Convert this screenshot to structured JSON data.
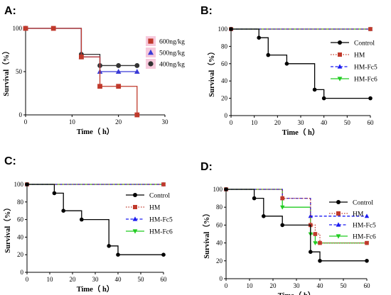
{
  "chart_data": [
    {
      "type": "line",
      "step": true,
      "panel_label": "A:",
      "xlabel": "Time（ h）",
      "ylabel": "Survival（%）",
      "xlim": [
        0,
        30
      ],
      "ylim": [
        0,
        100
      ],
      "x_ticks": [
        0,
        10,
        20,
        30
      ],
      "y_ticks": [
        0,
        50,
        100
      ],
      "legend_position": "top-right",
      "series": [
        {
          "name": "600ng/kg",
          "color": "#c0392b",
          "marker": "square",
          "line_style": "solid",
          "x": [
            0,
            6,
            12,
            16,
            20,
            24
          ],
          "values": [
            100,
            100,
            67,
            33,
            33,
            0
          ]
        },
        {
          "name": "500ng/kg",
          "color": "#3b3bd6",
          "marker": "triangle",
          "line_style": "solid",
          "x": [
            0,
            12,
            16,
            20,
            24
          ],
          "values": [
            100,
            67,
            50,
            50,
            50
          ]
        },
        {
          "name": "400ng/kg",
          "color": "#333333",
          "marker": "circle",
          "line_style": "solid",
          "x": [
            0,
            12,
            16,
            20,
            24
          ],
          "values": [
            100,
            70,
            57,
            57,
            57
          ]
        }
      ]
    },
    {
      "type": "line",
      "step": true,
      "panel_label": "B:",
      "xlabel": "Time（ h）",
      "ylabel": "Survival（%）",
      "xlim": [
        0,
        60
      ],
      "ylim": [
        0,
        100
      ],
      "x_ticks": [
        0,
        10,
        20,
        30,
        40,
        50,
        60
      ],
      "y_ticks": [
        0,
        20,
        40,
        60,
        80,
        100
      ],
      "legend_position": "right",
      "series": [
        {
          "name": "Control",
          "color": "#000000",
          "marker": "circle",
          "line_style": "solid",
          "x": [
            0,
            12,
            16,
            24,
            36,
            40,
            60
          ],
          "values": [
            100,
            90,
            70,
            60,
            30,
            20,
            20
          ]
        },
        {
          "name": "HM",
          "color": "#c0392b",
          "marker": "square",
          "line_style": "dotted",
          "x": [
            0,
            60
          ],
          "values": [
            100,
            100
          ]
        },
        {
          "name": "HM-Fc5",
          "color": "#1a1af0",
          "marker": "triangle",
          "line_style": "dashed",
          "x": [
            0,
            60
          ],
          "values": [
            100,
            100
          ]
        },
        {
          "name": "HM-Fc6",
          "color": "#22cc22",
          "marker": "triangle-down",
          "line_style": "solid",
          "x": [
            0,
            60
          ],
          "values": [
            100,
            100
          ]
        }
      ]
    },
    {
      "type": "line",
      "step": true,
      "panel_label": "C:",
      "xlabel": "Time（ h）",
      "ylabel": "Survival（%）",
      "xlim": [
        0,
        60
      ],
      "ylim": [
        0,
        100
      ],
      "x_ticks": [
        0,
        10,
        20,
        30,
        40,
        50,
        60
      ],
      "y_ticks": [
        0,
        20,
        40,
        60,
        80,
        100
      ],
      "legend_position": "right",
      "series": [
        {
          "name": "Control",
          "color": "#000000",
          "marker": "circle",
          "line_style": "solid",
          "x": [
            0,
            12,
            16,
            24,
            36,
            40,
            60
          ],
          "values": [
            100,
            90,
            70,
            60,
            30,
            20,
            20
          ]
        },
        {
          "name": "HM",
          "color": "#c0392b",
          "marker": "square",
          "line_style": "dotted",
          "x": [
            0,
            60
          ],
          "values": [
            100,
            100
          ]
        },
        {
          "name": "HM-Fc5",
          "color": "#1a1af0",
          "marker": "triangle",
          "line_style": "dashed",
          "x": [
            0,
            60
          ],
          "values": [
            100,
            100
          ]
        },
        {
          "name": "HM-Fc6",
          "color": "#22cc22",
          "marker": "triangle-down",
          "line_style": "solid",
          "x": [
            0,
            60
          ],
          "values": [
            100,
            100
          ]
        }
      ]
    },
    {
      "type": "line",
      "step": true,
      "panel_label": "D:",
      "xlabel": "Time（ h）",
      "ylabel": "Survival（%）",
      "xlim": [
        0,
        60
      ],
      "ylim": [
        0,
        100
      ],
      "x_ticks": [
        0,
        10,
        20,
        30,
        40,
        50,
        60
      ],
      "y_ticks": [
        0,
        20,
        40,
        60,
        80,
        100
      ],
      "legend_position": "top-right",
      "series": [
        {
          "name": "Control",
          "color": "#000000",
          "marker": "circle",
          "line_style": "solid",
          "x": [
            0,
            12,
            16,
            24,
            36,
            40,
            60
          ],
          "values": [
            100,
            90,
            70,
            60,
            30,
            20,
            20
          ]
        },
        {
          "name": "HM",
          "color": "#c0392b",
          "marker": "square",
          "line_style": "dotted",
          "x": [
            0,
            24,
            36,
            38,
            40,
            60
          ],
          "values": [
            100,
            90,
            60,
            50,
            40,
            40
          ]
        },
        {
          "name": "HM-Fc5",
          "color": "#1a1af0",
          "marker": "triangle",
          "line_style": "dashed",
          "x": [
            0,
            24,
            36,
            60
          ],
          "values": [
            100,
            90,
            70,
            70
          ]
        },
        {
          "name": "HM-Fc6",
          "color": "#22cc22",
          "marker": "triangle-down",
          "line_style": "solid",
          "x": [
            0,
            24,
            36,
            38,
            60
          ],
          "values": [
            100,
            80,
            50,
            40,
            40
          ]
        }
      ]
    }
  ]
}
